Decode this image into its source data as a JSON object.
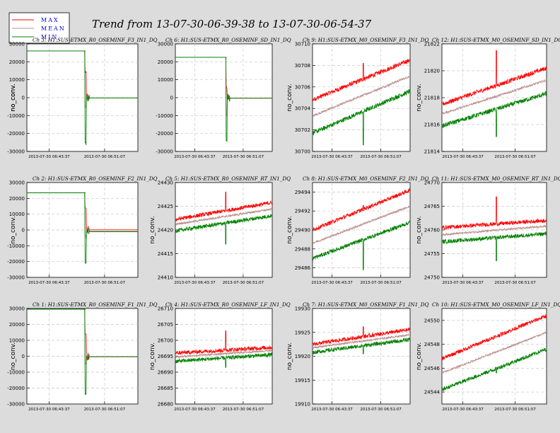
{
  "figure": {
    "title": "Trend from 13-07-30-06-39-38 to 13-07-30-06-54-37",
    "legend": [
      {
        "label": "MAX",
        "color": "#ff0000"
      },
      {
        "label": "MEAN",
        "color": "#bc8f8f"
      },
      {
        "label": "MIN",
        "color": "#008000"
      }
    ]
  },
  "chart_data": [
    {
      "type": "line",
      "channel": "Ch 3: H1:SUS-ETMX_R0_OSEMINF_F3_IN1_DQ",
      "ylabel": "no_conv.",
      "ylim": [
        -30000,
        30000
      ],
      "yticks": [
        "-30000",
        "-20000",
        "-10000",
        "0",
        "10000",
        "20000",
        "30000"
      ],
      "xticks": [
        "2013-07-30 06:43:37",
        "2013-07-30 06:51:07"
      ],
      "kind": "step",
      "pre": 26000,
      "post": -200,
      "step_at": 0.53,
      "spike_max": 14000,
      "spike_min": -25000,
      "mean_offset": 0,
      "spread": 0
    },
    {
      "type": "line",
      "channel": "Ch 6: H1:SUS-ETMX_R0_OSEMINF_SD_IN1_DQ",
      "ylabel": "no_conv.",
      "ylim": [
        -30000,
        30000
      ],
      "yticks": [
        "-30000",
        "-20000",
        "-10000",
        "0",
        "10000",
        "20000",
        "30000"
      ],
      "xticks": [
        "2013-07-30 06:43:37",
        "2013-07-30 06:51:07"
      ],
      "kind": "step",
      "pre": 22500,
      "post": -300,
      "step_at": 0.53,
      "spike_max": 6000,
      "spike_min": -24000,
      "mean_offset": 0,
      "spread": 0
    },
    {
      "type": "line",
      "channel": "Ch 9: H1:SUS-ETMX_M0_OSEMINF_F3_IN1_DQ",
      "ylabel": "",
      "ylim": [
        30700,
        30710
      ],
      "yticks": [
        "30700",
        "30702",
        "30704",
        "30706",
        "30708",
        "30710"
      ],
      "xticks": [
        "2013-07-30 06:43:37",
        "2013-07-30 06:51:07"
      ],
      "kind": "trend",
      "max_start": 30704.8,
      "max_end": 30708.5,
      "mean_start": 30703.3,
      "mean_end": 30707.0,
      "min_start": 30701.7,
      "min_end": 30705.6,
      "spike_at": 0.52,
      "spike_max": 30708.2,
      "spike_min": 30700.6
    },
    {
      "type": "line",
      "channel": "Ch 12: H1:SUS-ETMX_M0_OSEMINF_SD_IN1_DQ",
      "ylabel": "",
      "ylim": [
        21814,
        21822
      ],
      "yticks": [
        "21814",
        "21816",
        "21818",
        "21820",
        "21822"
      ],
      "xticks": [
        "2013-07-30 06:43:37",
        "2013-07-30 06:51:07"
      ],
      "kind": "trend",
      "max_start": 21817.5,
      "max_end": 21820.2,
      "mean_start": 21816.8,
      "mean_end": 21819.3,
      "min_start": 21815.9,
      "min_end": 21818.3,
      "spike_at": 0.52,
      "spike_max": 21821.5,
      "spike_min": 21815.1
    },
    {
      "type": "line",
      "channel": "Ch 2: H1:SUS-ETMX_R0_OSEMINF_F2_IN1_DQ",
      "ylabel": "no_conv.",
      "ylim": [
        -30000,
        30000
      ],
      "yticks": [
        "-30000",
        "-20000",
        "-10000",
        "0",
        "10000",
        "20000",
        "30000"
      ],
      "xticks": [
        "2013-07-30 06:43:37",
        "2013-07-30 06:51:07"
      ],
      "kind": "step",
      "pre": 23500,
      "post": -500,
      "step_at": 0.53,
      "spike_max": 14000,
      "spike_min": -21000,
      "mean_offset": -300,
      "spread": 600
    },
    {
      "type": "line",
      "channel": "Ch 5: H1:SUS-ETMX_R0_OSEMINF_RT_IN1_DQ",
      "ylabel": "",
      "ylim": [
        24410,
        24430
      ],
      "yticks": [
        "24410",
        "24415",
        "24420",
        "24425",
        "24430"
      ],
      "xticks": [
        "2013-07-30 06:43:37",
        "2013-07-30 06:51:07"
      ],
      "kind": "trend",
      "max_start": 24422.2,
      "max_end": 24425.8,
      "mean_start": 24421.2,
      "mean_end": 24424.4,
      "min_start": 24419.8,
      "min_end": 24423.0,
      "spike_at": 0.52,
      "spike_max": 24428.0,
      "spike_min": 24417.0
    },
    {
      "type": "line",
      "channel": "Ch 8: H1:SUS-ETMX_M0_OSEMINF_F2_IN1_DQ",
      "ylabel": "",
      "ylim": [
        29485,
        29495
      ],
      "yticks": [
        "29486",
        "29488",
        "29490",
        "29492",
        "29494"
      ],
      "xticks": [
        "2013-07-30 06:43:37",
        "2013-07-30 06:51:07"
      ],
      "kind": "trend",
      "max_start": 29490.0,
      "max_end": 29494.2,
      "mean_start": 29488.6,
      "mean_end": 29492.5,
      "min_start": 29487.0,
      "min_end": 29490.8,
      "spike_at": 0.52,
      "spike_max": 29492.6,
      "spike_min": 29485.8
    },
    {
      "type": "line",
      "channel": "Ch 11: H1:SUS-ETMX_M0_OSEMINF_RT_IN1_DQ",
      "ylabel": "",
      "ylim": [
        24750,
        24770
      ],
      "yticks": [
        "24750",
        "24755",
        "24760",
        "24765",
        "24770"
      ],
      "xticks": [
        "2013-07-30 06:43:37",
        "2013-07-30 06:51:07"
      ],
      "kind": "trend",
      "max_start": 24760.5,
      "max_end": 24762.0,
      "mean_start": 24759.0,
      "mean_end": 24760.8,
      "min_start": 24757.5,
      "min_end": 24759.2,
      "spike_at": 0.52,
      "spike_max": 24767.0,
      "spike_min": 24753.5
    },
    {
      "type": "line",
      "channel": "Ch 1: H1:SUS-ETMX_R0_OSEMINF_F1_IN1_DQ",
      "ylabel": "no_conv.",
      "ylim": [
        -30000,
        30000
      ],
      "yticks": [
        "-30000",
        "-20000",
        "-10000",
        "0",
        "10000",
        "20000",
        "30000"
      ],
      "xticks": [
        "2013-07-30 06:43:37",
        "2013-07-30 06:51:07"
      ],
      "kind": "step",
      "pre": 29500,
      "post": -300,
      "step_at": 0.53,
      "spike_max": 14000,
      "spike_min": -24000,
      "mean_offset": 0,
      "spread": 0
    },
    {
      "type": "line",
      "channel": "Ch 4: H1:SUS-ETMX_R0_OSEMINF_LF_IN1_DQ",
      "ylabel": "",
      "ylim": [
        26680,
        26710
      ],
      "yticks": [
        "26680",
        "26685",
        "26690",
        "26695",
        "26700",
        "26705",
        "26710"
      ],
      "xticks": [
        "2013-07-30 06:43:37",
        "2013-07-30 06:51:07"
      ],
      "kind": "trend",
      "max_start": 26696.0,
      "max_end": 26697.8,
      "mean_start": 26694.8,
      "mean_end": 26696.8,
      "min_start": 26693.4,
      "min_end": 26695.5,
      "spike_at": 0.52,
      "spike_max": 26703.0,
      "spike_min": 26691.5
    },
    {
      "type": "line",
      "channel": "Ch 7: H1:SUS-ETMX_M0_OSEMINF_F1_IN1_DQ",
      "ylabel": "",
      "ylim": [
        19910,
        19930
      ],
      "yticks": [
        "19910",
        "19915",
        "19920",
        "19925",
        "19930"
      ],
      "xticks": [
        "2013-07-30 06:43:37",
        "2013-07-30 06:51:07"
      ],
      "kind": "trend",
      "max_start": 19922.5,
      "max_end": 19925.6,
      "mean_start": 19921.8,
      "mean_end": 19924.5,
      "min_start": 19920.8,
      "min_end": 19923.5,
      "spike_at": 0.52,
      "spike_max": 19926.2,
      "spike_min": 19920.5
    },
    {
      "type": "line",
      "channel": "Ch 10: H1:SUS-ETMX_M0_OSEMINF_LF_IN1_DQ",
      "ylabel": "",
      "ylim": [
        24543,
        24551
      ],
      "yticks": [
        "24544",
        "24546",
        "24548",
        "24550"
      ],
      "xticks": [
        "2013-07-30 06:43:37",
        "2013-07-30 06:51:07"
      ],
      "kind": "trend",
      "max_start": 24546.8,
      "max_end": 24550.4,
      "mean_start": 24545.6,
      "mean_end": 24549.0,
      "min_start": 24544.2,
      "min_end": 24547.6,
      "spike_at": 0.52,
      "spike_max": 24548.6,
      "spike_min": 24545.6
    }
  ]
}
